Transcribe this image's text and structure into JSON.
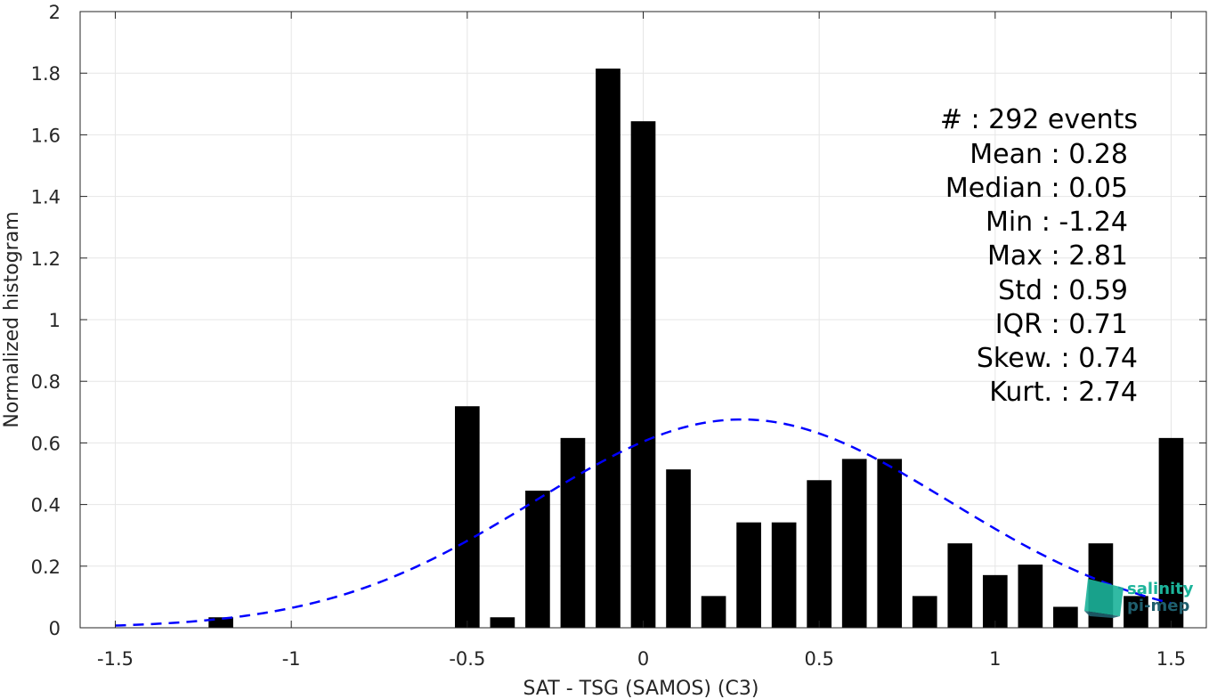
{
  "chart_data": {
    "type": "bar",
    "xlabel": "SAT - TSG (SAMOS) (C3)",
    "ylabel": "Normalized histogram",
    "xlim": [
      -1.6,
      1.6
    ],
    "ylim": [
      0,
      2
    ],
    "grid": true,
    "x_ticks": [
      -1.5,
      -1,
      -0.5,
      0,
      0.5,
      1,
      1.5
    ],
    "x_tick_labels": [
      "-1.5",
      "-1",
      "-0.5",
      "0",
      "0.5",
      "1",
      "1.5"
    ],
    "y_ticks": [
      0,
      0.2,
      0.4,
      0.6,
      0.8,
      1,
      1.2,
      1.4,
      1.6,
      1.8,
      2
    ],
    "y_tick_labels": [
      "0",
      "0.2",
      "0.4",
      "0.6",
      "0.8",
      "1",
      "1.2",
      "1.4",
      "1.6",
      "1.8",
      "2"
    ],
    "bar_width": 0.07,
    "bars": [
      {
        "x": -1.2,
        "y": 0.034
      },
      {
        "x": -0.5,
        "y": 0.719
      },
      {
        "x": -0.4,
        "y": 0.034
      },
      {
        "x": -0.3,
        "y": 0.445
      },
      {
        "x": -0.2,
        "y": 0.616
      },
      {
        "x": -0.1,
        "y": 1.815
      },
      {
        "x": 0.0,
        "y": 1.644
      },
      {
        "x": 0.1,
        "y": 0.514
      },
      {
        "x": 0.2,
        "y": 0.103
      },
      {
        "x": 0.3,
        "y": 0.342
      },
      {
        "x": 0.4,
        "y": 0.342
      },
      {
        "x": 0.5,
        "y": 0.479
      },
      {
        "x": 0.6,
        "y": 0.548
      },
      {
        "x": 0.7,
        "y": 0.548
      },
      {
        "x": 0.8,
        "y": 0.103
      },
      {
        "x": 0.9,
        "y": 0.274
      },
      {
        "x": 1.0,
        "y": 0.171
      },
      {
        "x": 1.1,
        "y": 0.205
      },
      {
        "x": 1.2,
        "y": 0.068
      },
      {
        "x": 1.3,
        "y": 0.274
      },
      {
        "x": 1.4,
        "y": 0.103
      },
      {
        "x": 1.5,
        "y": 0.616
      }
    ],
    "fit_curve": {
      "style": "dashed",
      "color": "#0000ff",
      "mean": 0.28,
      "std": 0.59,
      "x_range": [
        -1.5,
        1.5
      ]
    },
    "bar_color": "#000000"
  },
  "stats": [
    {
      "text": "#  : 292 events"
    },
    {
      "text": "Mean : 0.28"
    },
    {
      "text": "Median : 0.05"
    },
    {
      "text": "Min : -1.24"
    },
    {
      "text": "Max : 2.81"
    },
    {
      "text": "Std : 0.59"
    },
    {
      "text": "IQR : 0.71"
    },
    {
      "text": "Skew. : 0.74"
    },
    {
      "text": "Kurt. : 2.74"
    }
  ],
  "logo": {
    "line1": "salinity",
    "line2": "pi-mep",
    "color1": "#1bb39a",
    "color2": "#1f5f6e"
  }
}
